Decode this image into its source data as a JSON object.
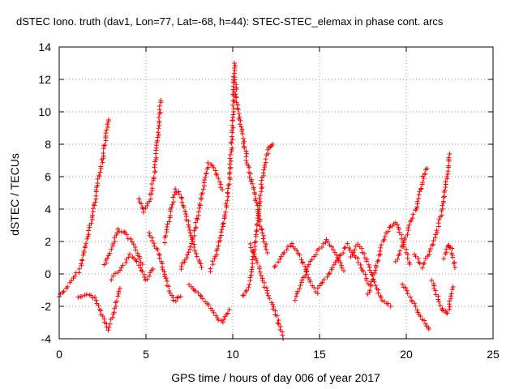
{
  "chart_data": {
    "type": "scatter",
    "title": "dSTEC Iono. truth (dav1, Lon=77, Lat=-68, h=44): STEC-STEC_elemax in phase cont. arcs",
    "xlabel": "GPS time / hours of day 006 of year 2017",
    "ylabel": "dSTEC  / TECUs",
    "xlim": [
      0,
      25
    ],
    "ylim": [
      -4,
      14
    ],
    "xticks": [
      0,
      5,
      10,
      15,
      20,
      25
    ],
    "yticks": [
      -4,
      -2,
      0,
      2,
      4,
      6,
      8,
      10,
      12,
      14
    ],
    "grid": true,
    "marker": "+",
    "color": "#ff0000",
    "arcs": [
      {
        "x": [
          0.0,
          0.4,
          0.8,
          1.2,
          1.5,
          1.9,
          2.2,
          2.5,
          2.7,
          2.85
        ],
        "y": [
          -1.4,
          -0.9,
          -0.3,
          0.3,
          1.6,
          3.5,
          5.5,
          7.0,
          8.5,
          9.5
        ]
      },
      {
        "x": [
          1.1,
          1.6,
          2.1,
          2.5,
          2.8,
          3.1,
          3.5
        ],
        "y": [
          -1.5,
          -1.2,
          -1.5,
          -2.6,
          -3.4,
          -2.5,
          -0.9
        ]
      },
      {
        "x": [
          2.6,
          3.0,
          3.4,
          3.8,
          4.3,
          4.8
        ],
        "y": [
          0.5,
          1.5,
          2.7,
          2.5,
          1.8,
          0.6
        ]
      },
      {
        "x": [
          3.0,
          3.6,
          4.1,
          4.6,
          5.0,
          5.4
        ],
        "y": [
          -0.3,
          0.4,
          1.2,
          0.6,
          -0.4,
          0.3
        ]
      },
      {
        "x": [
          4.6,
          4.9,
          5.2,
          5.5,
          5.7,
          5.85
        ],
        "y": [
          4.6,
          3.8,
          4.5,
          6.2,
          8.6,
          10.7
        ]
      },
      {
        "x": [
          5.2,
          5.6,
          6.0,
          6.3,
          6.6,
          7.0
        ],
        "y": [
          2.5,
          1.6,
          0.3,
          -0.8,
          -1.7,
          -1.4
        ]
      },
      {
        "x": [
          6.1,
          6.4,
          6.7,
          7.0,
          7.4,
          7.8,
          8.2
        ],
        "y": [
          2.0,
          3.8,
          5.2,
          4.8,
          3.2,
          1.6,
          0.4
        ]
      },
      {
        "x": [
          7.0,
          7.4,
          7.8,
          8.2,
          8.6,
          9.0,
          9.4
        ],
        "y": [
          0.3,
          1.2,
          2.6,
          4.7,
          6.8,
          6.4,
          5.2
        ]
      },
      {
        "x": [
          7.5,
          8.0,
          8.5,
          9.0,
          9.4,
          9.8
        ],
        "y": [
          -0.6,
          -1.2,
          -1.8,
          -2.6,
          -3.0,
          -2.2
        ]
      },
      {
        "x": [
          8.7,
          9.1,
          9.5,
          9.8,
          10.0,
          10.1
        ],
        "y": [
          0.2,
          1.4,
          3.2,
          5.6,
          9.2,
          13.0
        ]
      },
      {
        "x": [
          10.1,
          10.3,
          10.6,
          10.9,
          11.2,
          11.6,
          12.0
        ],
        "y": [
          12.2,
          10.1,
          8.4,
          6.5,
          5.2,
          3.0,
          1.3
        ]
      },
      {
        "x": [
          10.6,
          10.9,
          11.2,
          11.5,
          11.8,
          12.1,
          12.3
        ],
        "y": [
          -1.4,
          -0.8,
          1.0,
          4.0,
          6.6,
          7.8,
          8.0
        ]
      },
      {
        "x": [
          11.0,
          11.4,
          11.8,
          12.2,
          12.6,
          12.9
        ],
        "y": [
          1.8,
          0.8,
          -0.6,
          -1.7,
          -2.8,
          -4.0
        ]
      },
      {
        "x": [
          12.4,
          12.9,
          13.4,
          13.9,
          14.4,
          14.9
        ],
        "y": [
          0.4,
          1.2,
          1.9,
          1.1,
          -0.4,
          -1.2
        ]
      },
      {
        "x": [
          13.6,
          14.0,
          14.4,
          14.9,
          15.4,
          15.9,
          16.4
        ],
        "y": [
          -1.6,
          -0.4,
          0.6,
          1.4,
          2.1,
          1.3,
          0.2
        ]
      },
      {
        "x": [
          14.9,
          15.4,
          16.0,
          16.6,
          17.2,
          17.8
        ],
        "y": [
          -0.9,
          -0.2,
          0.8,
          1.8,
          0.9,
          -0.6
        ]
      },
      {
        "x": [
          16.8,
          17.2,
          17.6,
          18.1,
          18.6,
          19.1
        ],
        "y": [
          1.0,
          1.8,
          1.2,
          -0.4,
          -1.6,
          -2.0
        ]
      },
      {
        "x": [
          17.8,
          18.2,
          18.6,
          19.0,
          19.4,
          19.8,
          20.2
        ],
        "y": [
          -1.3,
          0.2,
          1.8,
          2.8,
          3.2,
          2.0,
          0.6
        ]
      },
      {
        "x": [
          19.4,
          19.8,
          20.2,
          20.6,
          21.0,
          21.2
        ],
        "y": [
          0.8,
          1.8,
          3.0,
          4.2,
          6.0,
          6.5
        ]
      },
      {
        "x": [
          19.8,
          20.2,
          20.6,
          21.0,
          21.3
        ],
        "y": [
          -0.6,
          -1.4,
          -2.2,
          -2.9,
          -3.4
        ]
      },
      {
        "x": [
          20.5,
          20.9,
          21.3,
          21.7,
          22.1,
          22.5
        ],
        "y": [
          1.2,
          0.4,
          1.2,
          2.4,
          4.0,
          7.4
        ]
      },
      {
        "x": [
          21.5,
          21.8,
          22.1,
          22.4,
          22.7
        ],
        "y": [
          -0.4,
          -1.4,
          -2.3,
          -2.4,
          -0.8
        ]
      },
      {
        "x": [
          22.2,
          22.4,
          22.6,
          22.8
        ],
        "y": [
          1.0,
          1.8,
          1.5,
          0.4
        ]
      }
    ]
  }
}
